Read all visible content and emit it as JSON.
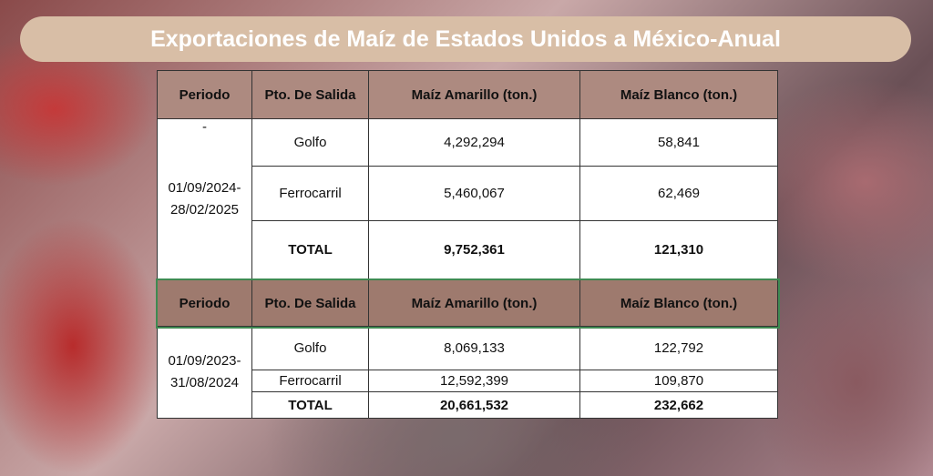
{
  "header": {
    "title": "Exportaciones de Maíz de Estados Unidos a México-Anual"
  },
  "tables": [
    {
      "columns": [
        "Periodo",
        "Pto. De Salida",
        "Maíz Amarillo (ton.)",
        "Maíz Blanco (ton.)"
      ],
      "period_note": "-",
      "period": [
        "01/09/2024-",
        "28/02/2025"
      ],
      "rows": [
        [
          "Golfo",
          "4,292,294",
          "58,841"
        ],
        [
          "Ferrocarril",
          "5,460,067",
          "62,469"
        ],
        [
          "TOTAL",
          "9,752,361",
          "121,310"
        ]
      ]
    },
    {
      "columns": [
        "Periodo",
        "Pto. De Salida",
        "Maíz Amarillo (ton.)",
        "Maíz Blanco (ton.)"
      ],
      "period": [
        "01/09/2023-",
        "31/08/2024"
      ],
      "rows": [
        [
          "Golfo",
          "8,069,133",
          "122,792"
        ],
        [
          "Ferrocarril",
          "12,592,399",
          "109,870"
        ],
        [
          "TOTAL",
          "20,661,532",
          "232,662"
        ]
      ]
    }
  ]
}
